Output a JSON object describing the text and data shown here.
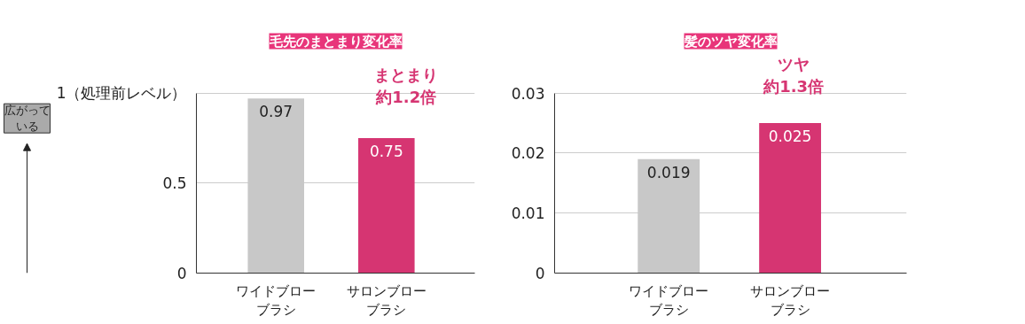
{
  "chart_data": [
    {
      "type": "bar",
      "title": "毛先のまとまり変化率",
      "categories": [
        "ワイドブローブラシ",
        "サロンブローブラシ"
      ],
      "values": [
        0.97,
        0.75
      ],
      "colors": [
        "#c8c8c8",
        "#d63572"
      ],
      "ylim": [
        0,
        1
      ],
      "yticks": [
        0,
        0.5,
        {
          "value": 1,
          "label": "1（処理前レベル）"
        }
      ],
      "grid": "y",
      "data_labels": true,
      "annotations": [
        "まとまり",
        "約1.2倍",
        "広がっている"
      ]
    },
    {
      "type": "bar",
      "title": "髪のツヤ変化率",
      "categories": [
        "ワイドブローブラシ",
        "サロンブローブラシ"
      ],
      "values": [
        0.019,
        0.025
      ],
      "colors": [
        "#c8c8c8",
        "#d63572"
      ],
      "ylim": [
        0,
        0.03
      ],
      "yticks": [
        0,
        0.01,
        0.02,
        0.03
      ],
      "grid": "y",
      "data_labels": true,
      "annotations": [
        "ツヤ",
        "約1.3倍"
      ]
    }
  ]
}
